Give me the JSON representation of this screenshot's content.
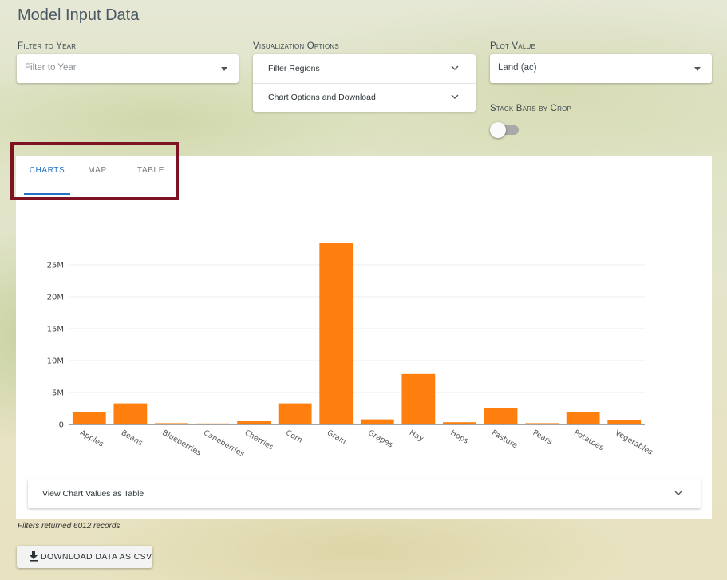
{
  "page": {
    "title": "Model Input Data"
  },
  "filters": {
    "year": {
      "label": "Filter to Year",
      "placeholder": "Filter to Year"
    },
    "visualization": {
      "label": "Visualization Options",
      "items": [
        {
          "label": "Filter Regions"
        },
        {
          "label": "Chart Options and Download"
        }
      ]
    },
    "plot_value": {
      "label": "Plot Value",
      "value": "Land (ac)"
    },
    "stack": {
      "label": "Stack Bars by Crop",
      "on": false
    }
  },
  "tabs": [
    {
      "label": "CHARTS",
      "active": true
    },
    {
      "label": "MAP",
      "active": false
    },
    {
      "label": "TABLE",
      "active": false
    }
  ],
  "chart_data": {
    "type": "bar",
    "categories": [
      "Apples",
      "Beans",
      "Blueberries",
      "Caneberries",
      "Cherries",
      "Corn",
      "Grain",
      "Grapes",
      "Hay",
      "Hops",
      "Pasture",
      "Pears",
      "Potatoes",
      "Vegetables"
    ],
    "values": [
      2000000,
      3300000,
      200000,
      150000,
      500000,
      3300000,
      28500000,
      800000,
      7900000,
      350000,
      2500000,
      200000,
      2000000,
      650000
    ],
    "yticks": [
      {
        "value": 0,
        "label": "0"
      },
      {
        "value": 5000000,
        "label": "5M"
      },
      {
        "value": 10000000,
        "label": "10M"
      },
      {
        "value": 15000000,
        "label": "15M"
      },
      {
        "value": 20000000,
        "label": "20M"
      },
      {
        "value": 25000000,
        "label": "25M"
      }
    ],
    "ylim": [
      0,
      28500000
    ],
    "title": "",
    "xlabel": "",
    "ylabel": "",
    "bar_color": "#ff7f0e",
    "grid": true
  },
  "table_toggle": {
    "label": "View Chart Values as Table"
  },
  "records": {
    "text": "Filters returned 6012 records"
  },
  "download": {
    "label": "DOWNLOAD DATA AS CSV",
    "icon": "download-icon"
  },
  "colors": {
    "accent": "#2872c6",
    "highlight": "#7d1322"
  }
}
